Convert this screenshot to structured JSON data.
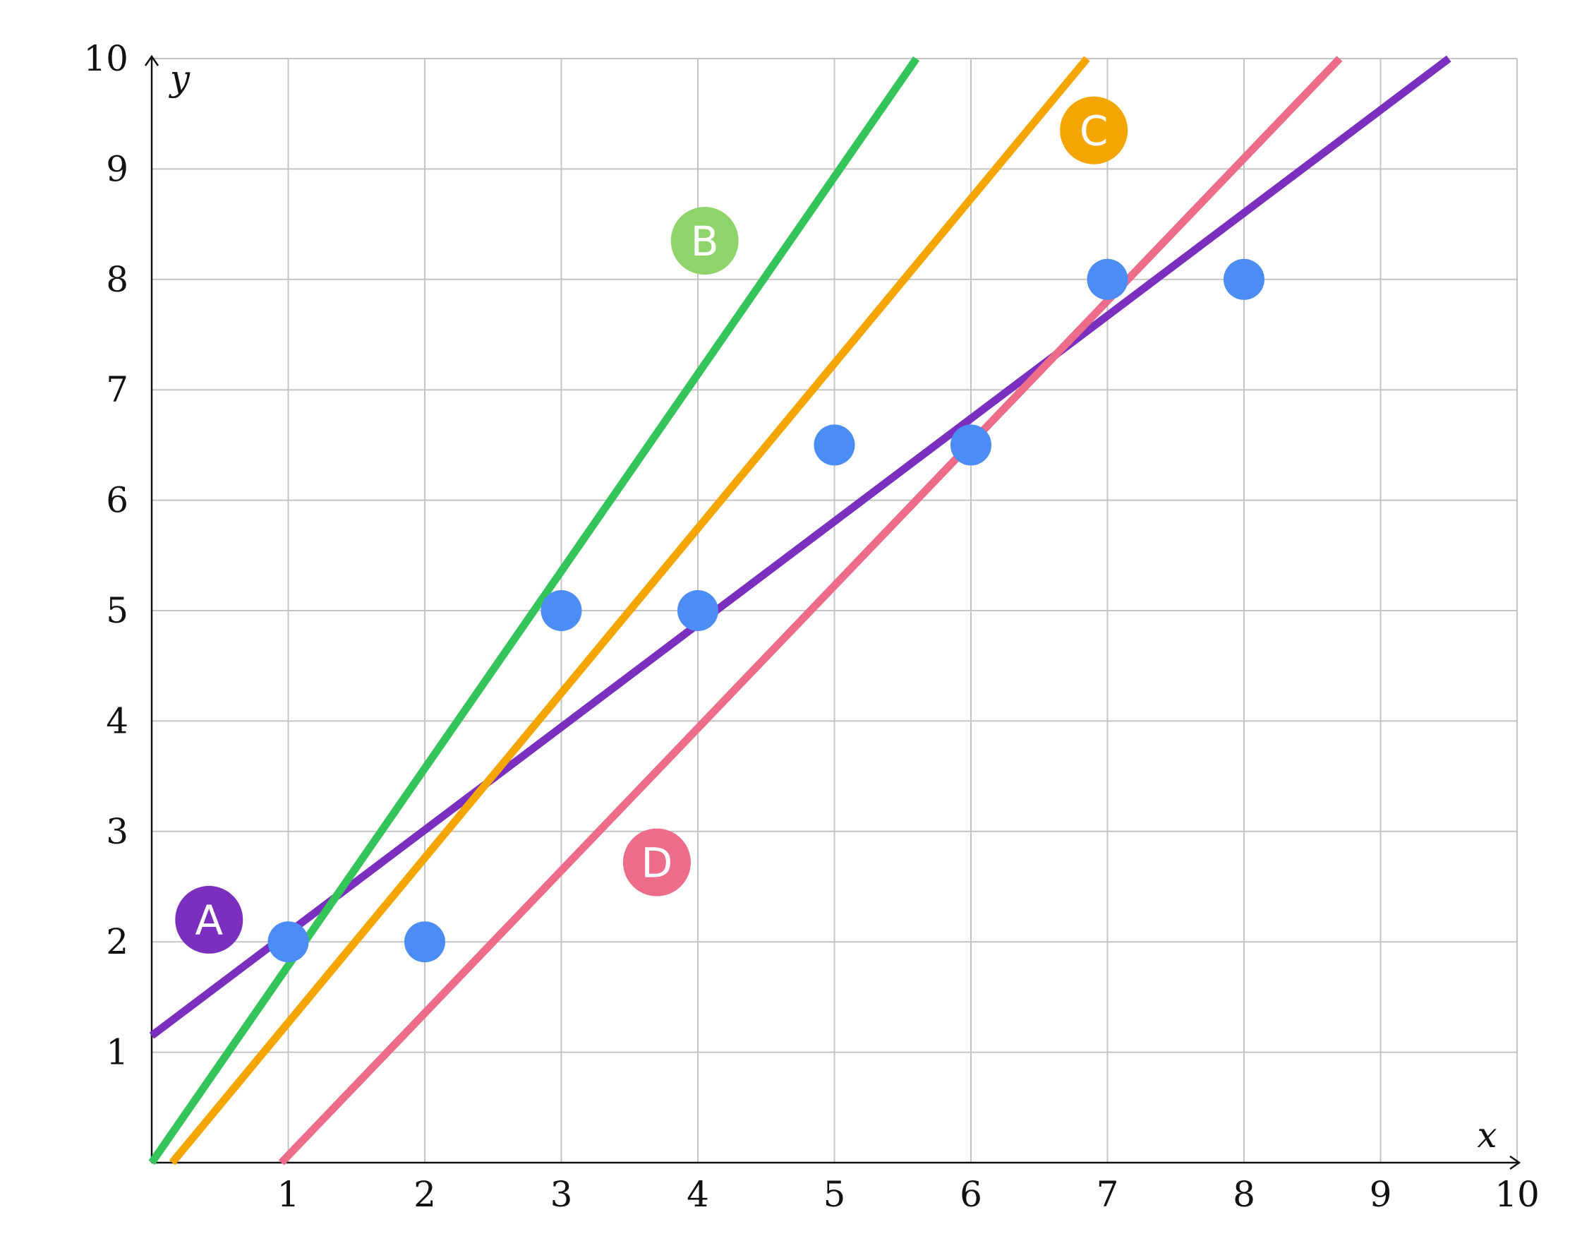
{
  "chart_data": {
    "type": "scatter",
    "title": "",
    "xlabel": "x",
    "ylabel": "y",
    "xlim": [
      0,
      10
    ],
    "ylim": [
      0,
      10
    ],
    "x_ticks": [
      1,
      2,
      3,
      4,
      5,
      6,
      7,
      8,
      9,
      10
    ],
    "y_ticks": [
      1,
      2,
      3,
      4,
      5,
      6,
      7,
      8,
      9,
      10
    ],
    "grid": true,
    "points": [
      {
        "x": 1,
        "y": 2
      },
      {
        "x": 2,
        "y": 2
      },
      {
        "x": 3,
        "y": 5
      },
      {
        "x": 4,
        "y": 5
      },
      {
        "x": 5,
        "y": 6.5
      },
      {
        "x": 6,
        "y": 6.5
      },
      {
        "x": 7,
        "y": 8
      },
      {
        "x": 8,
        "y": 8
      }
    ],
    "point_color": "#4b8cf5",
    "lines": [
      {
        "name": "A",
        "color": "#7b2fbf",
        "label_position": {
          "x": 0.42,
          "y": 2.2
        },
        "segment": [
          {
            "x": 0,
            "y": 1.15
          },
          {
            "x": 9.5,
            "y": 10
          }
        ]
      },
      {
        "name": "B",
        "color": "#35c459",
        "label_position": {
          "x": 4.05,
          "y": 8.35
        },
        "segment": [
          {
            "x": 0,
            "y": 0
          },
          {
            "x": 5.6,
            "y": 10
          }
        ]
      },
      {
        "name": "C",
        "color": "#f5a500",
        "label_position": {
          "x": 6.9,
          "y": 9.35
        },
        "segment": [
          {
            "x": 0.15,
            "y": 0
          },
          {
            "x": 6.85,
            "y": 10
          }
        ]
      },
      {
        "name": "D",
        "color": "#ec6c8a",
        "label_position": {
          "x": 3.7,
          "y": 2.72
        },
        "segment": [
          {
            "x": 0.95,
            "y": 0
          },
          {
            "x": 8.7,
            "y": 10
          }
        ]
      }
    ],
    "label_badge_colors": {
      "A": "#7b2fbf",
      "B": "#8fd46a",
      "C": "#f5a500",
      "D": "#ec6c8a"
    }
  }
}
